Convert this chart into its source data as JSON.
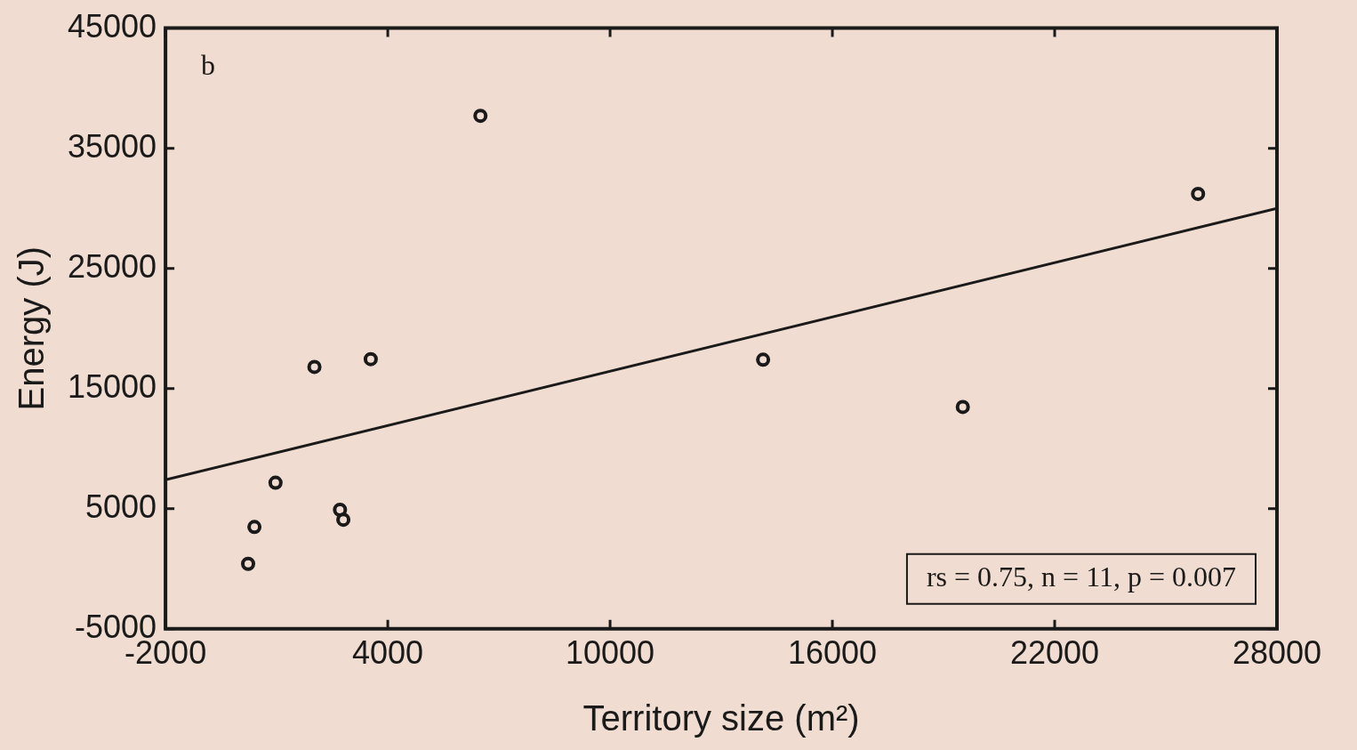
{
  "chart_data": {
    "type": "scatter",
    "xlabel": "Territory size (m²)",
    "ylabel": "Energy (J)",
    "xlim": [
      -2000,
      28000
    ],
    "xticks": [
      -2000,
      4000,
      10000,
      16000,
      22000,
      28000
    ],
    "ylim": [
      -5000,
      45000
    ],
    "yticks": [
      -5000,
      5000,
      15000,
      25000,
      35000,
      45000
    ],
    "grid": false,
    "legend": false,
    "marker": "circle",
    "series": [
      {
        "color": "#1a1a1a",
        "x": [
          6500,
          25870,
          2020,
          3540,
          14130,
          19520,
          970,
          400,
          230,
          2710,
          2800
        ],
        "values": [
          37700,
          31200,
          16800,
          17450,
          17400,
          13470,
          7160,
          3480,
          410,
          4910,
          4080
        ]
      },
      {
        "type": "line",
        "color": "#1a1a1a",
        "marker": "none",
        "line_style": "solid",
        "x": [
          -2000,
          28000
        ],
        "values": [
          7400,
          30000
        ]
      }
    ],
    "annotations": [
      "b",
      "rs = 0.75, n = 11, p = 0.007"
    ]
  }
}
